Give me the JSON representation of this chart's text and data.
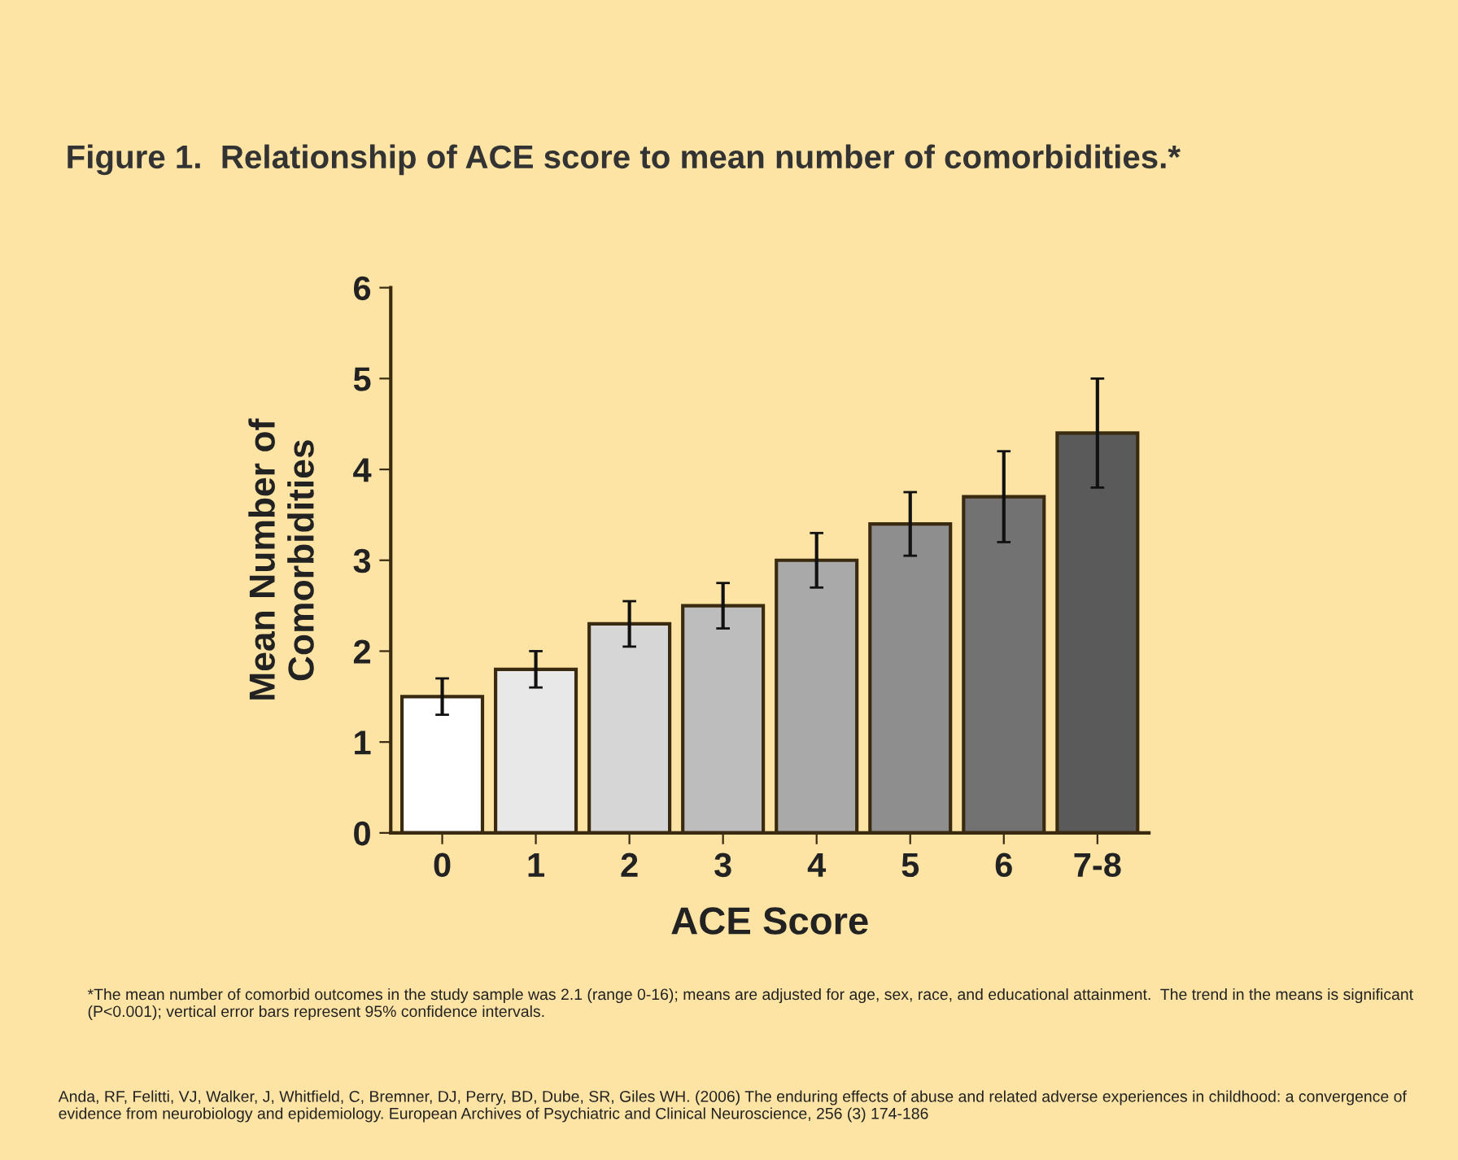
{
  "chart_data": {
    "type": "bar",
    "title": "Figure 1.  Relationship of ACE score to mean number of comorbidities.*",
    "xlabel": "ACE Score",
    "ylabel": "Mean Number of\nComorbidities",
    "categories": [
      "0",
      "1",
      "2",
      "3",
      "4",
      "5",
      "6",
      "7-8"
    ],
    "values": [
      1.5,
      1.8,
      2.3,
      2.5,
      3.0,
      3.4,
      3.7,
      4.4
    ],
    "errors": [
      0.2,
      0.2,
      0.25,
      0.25,
      0.3,
      0.35,
      0.5,
      0.6
    ],
    "colors": [
      "#ffffff",
      "#e8e8e8",
      "#d6d6d6",
      "#bdbdbd",
      "#a9a9a9",
      "#8e8e8e",
      "#727272",
      "#5a5a5a"
    ],
    "ylim": [
      0,
      6
    ],
    "yticks": [
      0,
      1,
      2,
      3,
      4,
      5,
      6
    ],
    "grid": false,
    "legend": false,
    "annotations": [
      "*The mean number of comorbid outcomes in the study sample was 2.1 (range 0-16); means are adjusted for age, sex, race, and educational attainment.  The trend in the means is significant (P<0.001); vertical error bars represent 95% confidence intervals.",
      "Anda, RF, Felitti, VJ, Walker, J, Whitfield, C, Bremner, DJ, Perry, BD, Dube, SR, Giles WH. (2006) The enduring effects of abuse and related adverse experiences in childhood: a convergence of evidence from neurobiology and epidemiology. European Archives of Psychiatric and Clinical Neuroscience, 256 (3) 174-186"
    ]
  }
}
